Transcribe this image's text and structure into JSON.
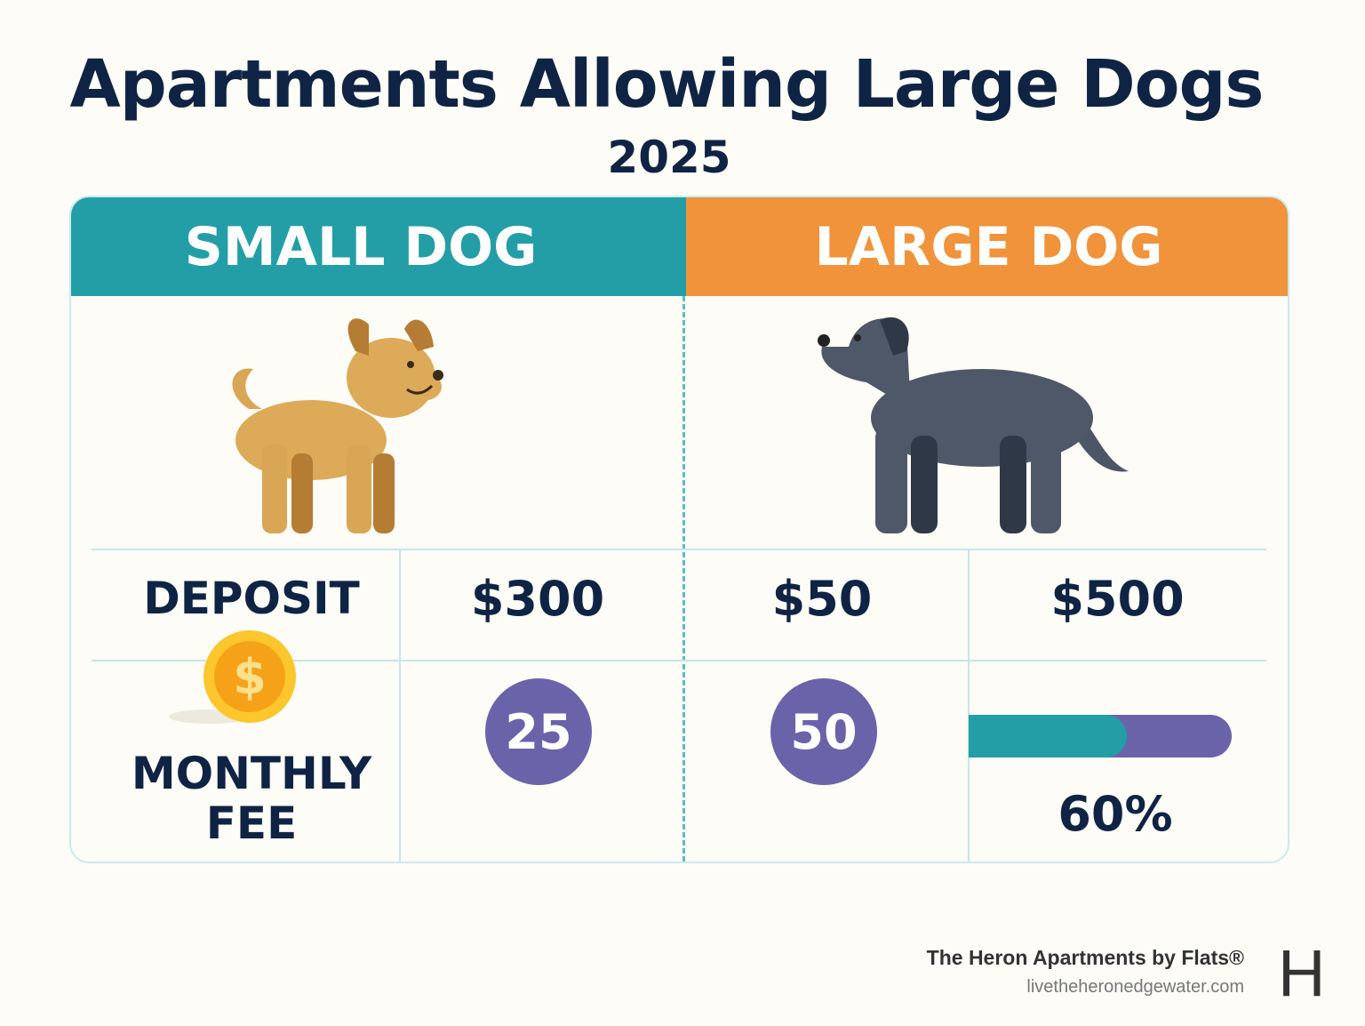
{
  "title": "Apartments Allowing Large Dogs",
  "year": "2025",
  "columns": {
    "small": "SMALL DOG",
    "large": "LARGE DOG"
  },
  "colors": {
    "teal": "#239ea6",
    "orange": "#f0933b",
    "purple": "#6a63aa",
    "navy": "#0f2444"
  },
  "rows": {
    "deposit": {
      "label": "DEPOSIT",
      "small": "$300",
      "large_a": "$50",
      "large_b": "$500"
    },
    "monthly": {
      "label": "MONTHLY FEE",
      "small": "25",
      "large_a": "50",
      "progress_percent": 60,
      "progress_label": "60%"
    }
  },
  "icons": [
    "small-dog-illustration",
    "large-dog-illustration",
    "dollar-coin-icon"
  ],
  "footer": {
    "brand": "The Heron Apartments by Flats®",
    "url": "livetheheronedgewater.com",
    "logo_letter": "H"
  }
}
